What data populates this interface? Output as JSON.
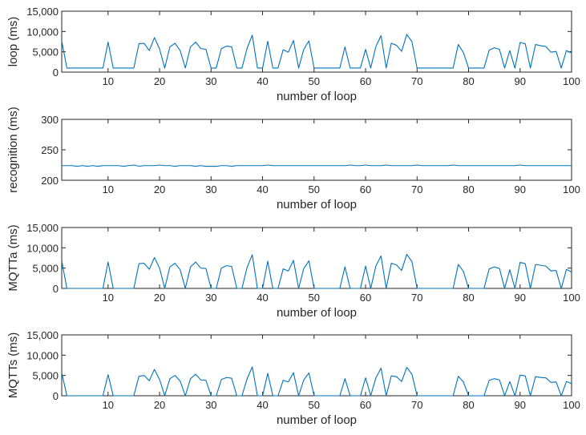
{
  "chart_data": [
    {
      "type": "line",
      "xlabel": "number of loop",
      "ylabel": "loop (ms)",
      "xlim": [
        1,
        100
      ],
      "ylim": [
        0,
        15000
      ],
      "xticks": [
        10,
        20,
        30,
        40,
        50,
        60,
        70,
        80,
        90,
        100
      ],
      "yticks": [
        0,
        5000,
        10000,
        15000
      ],
      "ytick_labels": [
        "0",
        "5,000",
        "10,000",
        "15,000"
      ],
      "color": "#0072BD",
      "x": [
        1,
        2,
        3,
        4,
        5,
        6,
        7,
        8,
        9,
        10,
        11,
        12,
        13,
        14,
        15,
        16,
        17,
        18,
        19,
        20,
        21,
        22,
        23,
        24,
        25,
        26,
        27,
        28,
        29,
        30,
        31,
        32,
        33,
        34,
        35,
        36,
        37,
        38,
        39,
        40,
        41,
        42,
        43,
        44,
        45,
        46,
        47,
        48,
        49,
        50,
        51,
        52,
        53,
        54,
        55,
        56,
        57,
        58,
        59,
        60,
        61,
        62,
        63,
        64,
        65,
        66,
        67,
        68,
        69,
        70,
        71,
        72,
        73,
        74,
        75,
        76,
        77,
        78,
        79,
        80,
        81,
        82,
        83,
        84,
        85,
        86,
        87,
        88,
        89,
        90,
        91,
        92,
        93,
        94,
        95,
        96,
        97,
        98,
        99,
        100
      ],
      "y": [
        7700,
        1000,
        1000,
        1000,
        1000,
        1000,
        1000,
        1000,
        1000,
        7400,
        1000,
        1000,
        1000,
        1000,
        1000,
        7000,
        7100,
        5300,
        8500,
        5700,
        1000,
        6200,
        7100,
        5300,
        1000,
        6200,
        7400,
        5800,
        5600,
        1000,
        1000,
        5800,
        6400,
        6200,
        1000,
        1000,
        5900,
        9100,
        1000,
        1000,
        7600,
        1000,
        1000,
        5500,
        4900,
        7800,
        1000,
        5600,
        7700,
        1000,
        1000,
        1000,
        1000,
        1000,
        1000,
        6200,
        1000,
        1000,
        1000,
        5600,
        1000,
        6300,
        9000,
        1000,
        7100,
        6600,
        5100,
        9300,
        7500,
        1000,
        1000,
        1000,
        1000,
        1000,
        1000,
        1000,
        1000,
        6800,
        4800,
        1000,
        1000,
        1000,
        1000,
        5400,
        6000,
        5600,
        1000,
        5300,
        1000,
        7300,
        7000,
        1000,
        6800,
        6500,
        6300,
        4900,
        5100,
        1000,
        5300,
        4700
      ]
    },
    {
      "type": "line",
      "xlabel": "number of loop",
      "ylabel": "recognition (ms)",
      "xlim": [
        1,
        100
      ],
      "ylim": [
        200,
        300
      ],
      "xticks": [
        10,
        20,
        30,
        40,
        50,
        60,
        70,
        80,
        90,
        100
      ],
      "yticks": [
        200,
        250,
        300
      ],
      "ytick_labels": [
        "200",
        "250",
        "300"
      ],
      "color": "#0072BD",
      "x": [
        1,
        2,
        3,
        4,
        5,
        6,
        7,
        8,
        9,
        10,
        11,
        12,
        13,
        14,
        15,
        16,
        17,
        18,
        19,
        20,
        21,
        22,
        23,
        24,
        25,
        26,
        27,
        28,
        29,
        30,
        31,
        32,
        33,
        34,
        35,
        36,
        37,
        38,
        39,
        40,
        41,
        42,
        43,
        44,
        45,
        46,
        47,
        48,
        49,
        50,
        51,
        52,
        53,
        54,
        55,
        56,
        57,
        58,
        59,
        60,
        61,
        62,
        63,
        64,
        65,
        66,
        67,
        68,
        69,
        70,
        71,
        72,
        73,
        74,
        75,
        76,
        77,
        78,
        79,
        80,
        81,
        82,
        83,
        84,
        85,
        86,
        87,
        88,
        89,
        90,
        91,
        92,
        93,
        94,
        95,
        96,
        97,
        98,
        99,
        100
      ],
      "y": [
        224,
        224,
        224,
        223,
        224,
        223,
        224,
        223,
        224,
        224,
        224,
        224,
        223,
        224,
        225,
        223,
        224,
        224,
        224,
        225,
        224,
        224,
        223,
        224,
        224,
        224,
        223,
        224,
        223,
        223,
        223,
        224,
        224,
        223,
        224,
        224,
        224,
        224,
        224,
        224,
        225,
        224,
        224,
        224,
        224,
        224,
        224,
        224,
        224,
        224,
        224,
        224,
        224,
        224,
        224,
        224,
        225,
        224,
        224,
        225,
        224,
        224,
        224,
        225,
        224,
        224,
        224,
        224,
        224,
        225,
        224,
        224,
        224,
        224,
        224,
        224,
        225,
        224,
        224,
        224,
        224,
        224,
        224,
        224,
        224,
        224,
        224,
        224,
        224,
        225,
        224,
        224,
        224,
        224,
        224,
        224,
        224,
        224,
        224,
        224
      ]
    },
    {
      "type": "line",
      "xlabel": "number of loop",
      "ylabel": "MQTTa (ms)",
      "xlim": [
        1,
        100
      ],
      "ylim": [
        0,
        15000
      ],
      "xticks": [
        10,
        20,
        30,
        40,
        50,
        60,
        70,
        80,
        90,
        100
      ],
      "yticks": [
        0,
        5000,
        10000,
        15000
      ],
      "ytick_labels": [
        "0",
        "5,000",
        "10,000",
        "15,000"
      ],
      "color": "#0072BD",
      "x": [
        1,
        2,
        3,
        4,
        5,
        6,
        7,
        8,
        9,
        10,
        11,
        12,
        13,
        14,
        15,
        16,
        17,
        18,
        19,
        20,
        21,
        22,
        23,
        24,
        25,
        26,
        27,
        28,
        29,
        30,
        31,
        32,
        33,
        34,
        35,
        36,
        37,
        38,
        39,
        40,
        41,
        42,
        43,
        44,
        45,
        46,
        47,
        48,
        49,
        50,
        51,
        52,
        53,
        54,
        55,
        56,
        57,
        58,
        59,
        60,
        61,
        62,
        63,
        64,
        65,
        66,
        67,
        68,
        69,
        70,
        71,
        72,
        73,
        74,
        75,
        76,
        77,
        78,
        79,
        80,
        81,
        82,
        83,
        84,
        85,
        86,
        87,
        88,
        89,
        90,
        91,
        92,
        93,
        94,
        95,
        96,
        97,
        98,
        99,
        100
      ],
      "y": [
        6800,
        0,
        0,
        0,
        0,
        0,
        0,
        0,
        0,
        6500,
        0,
        0,
        0,
        0,
        0,
        6100,
        6200,
        4700,
        7600,
        5000,
        0,
        5300,
        6200,
        4600,
        0,
        5300,
        6500,
        5000,
        4900,
        0,
        0,
        5000,
        5600,
        5400,
        0,
        0,
        5200,
        8300,
        0,
        0,
        6700,
        0,
        0,
        4800,
        4300,
        6900,
        0,
        4900,
        6800,
        0,
        0,
        0,
        0,
        0,
        0,
        5300,
        0,
        0,
        0,
        5500,
        0,
        5500,
        8000,
        0,
        6200,
        5800,
        4400,
        8400,
        6600,
        0,
        0,
        0,
        0,
        0,
        0,
        0,
        0,
        5900,
        4200,
        0,
        0,
        0,
        0,
        4800,
        5300,
        4900,
        0,
        4600,
        0,
        6400,
        6100,
        0,
        5900,
        5700,
        5500,
        4300,
        4400,
        0,
        4700,
        4000
      ]
    },
    {
      "type": "line",
      "xlabel": "number of loop",
      "ylabel": "MQTTs (ms)",
      "xlim": [
        1,
        100
      ],
      "ylim": [
        0,
        15000
      ],
      "xticks": [
        10,
        20,
        30,
        40,
        50,
        60,
        70,
        80,
        90,
        100
      ],
      "yticks": [
        0,
        5000,
        10000,
        15000
      ],
      "ytick_labels": [
        "0",
        "5,000",
        "10,000",
        "15,000"
      ],
      "color": "#0072BD",
      "x": [
        1,
        2,
        3,
        4,
        5,
        6,
        7,
        8,
        9,
        10,
        11,
        12,
        13,
        14,
        15,
        16,
        17,
        18,
        19,
        20,
        21,
        22,
        23,
        24,
        25,
        26,
        27,
        28,
        29,
        30,
        31,
        32,
        33,
        34,
        35,
        36,
        37,
        38,
        39,
        40,
        41,
        42,
        43,
        44,
        45,
        46,
        47,
        48,
        49,
        50,
        51,
        52,
        53,
        54,
        55,
        56,
        57,
        58,
        59,
        60,
        61,
        62,
        63,
        64,
        65,
        66,
        67,
        68,
        69,
        70,
        71,
        72,
        73,
        74,
        75,
        76,
        77,
        78,
        79,
        80,
        81,
        82,
        83,
        84,
        85,
        86,
        87,
        88,
        89,
        90,
        91,
        92,
        93,
        94,
        95,
        96,
        97,
        98,
        99,
        100
      ],
      "y": [
        5700,
        0,
        0,
        0,
        0,
        0,
        0,
        0,
        0,
        5200,
        0,
        0,
        0,
        0,
        0,
        4800,
        5000,
        3700,
        6500,
        4000,
        0,
        4200,
        5000,
        3600,
        0,
        4200,
        5300,
        3900,
        3800,
        0,
        0,
        4000,
        4500,
        4300,
        0,
        0,
        4200,
        7100,
        0,
        0,
        5500,
        0,
        0,
        3800,
        3400,
        5700,
        0,
        3900,
        5600,
        0,
        0,
        0,
        0,
        0,
        0,
        4200,
        0,
        0,
        0,
        4400,
        0,
        4400,
        6800,
        0,
        4900,
        4700,
        3500,
        7000,
        5300,
        0,
        0,
        0,
        0,
        0,
        0,
        0,
        0,
        4800,
        3400,
        0,
        0,
        0,
        0,
        3800,
        4200,
        3900,
        0,
        3500,
        0,
        5100,
        4900,
        0,
        4700,
        4500,
        4400,
        3300,
        3400,
        0,
        3500,
        3000
      ]
    }
  ]
}
